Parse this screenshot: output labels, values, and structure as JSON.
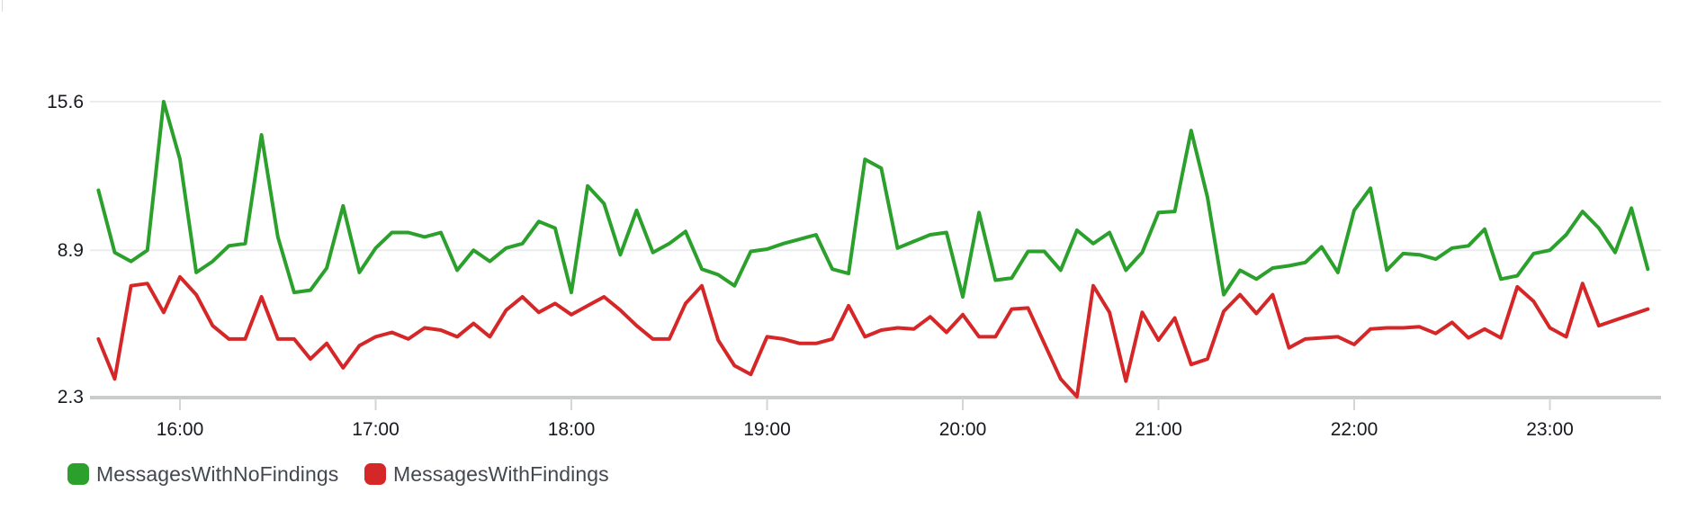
{
  "chart_data": {
    "type": "line",
    "title": "",
    "x_start": "15:35",
    "x_step_minutes": 5,
    "x_end": "23:30",
    "x_tick_labels": [
      "16:00",
      "17:00",
      "18:00",
      "19:00",
      "20:00",
      "21:00",
      "22:00",
      "23:00"
    ],
    "y_ticks": [
      {
        "label": "15.6",
        "value": 15.6
      },
      {
        "label": "8.9",
        "value": 8.9
      },
      {
        "label": "2.3",
        "value": 2.3
      }
    ],
    "ylim": [
      2.3,
      15.6
    ],
    "grid": "horizontal-only",
    "legend_position": "bottom-left",
    "colors": {
      "grid_line": "#eaecee",
      "axis_line": "#c8cccd",
      "tick_mark": "#d3d6d8",
      "tick_label": "#16191f"
    },
    "series": [
      {
        "name": "MessagesWithNoFindings",
        "color": "#2ca02c",
        "values": [
          11.6,
          8.8,
          8.4,
          8.9,
          15.6,
          13.0,
          7.9,
          8.4,
          9.1,
          9.2,
          14.1,
          9.5,
          7.0,
          7.1,
          8.1,
          10.9,
          7.9,
          9.0,
          9.7,
          9.7,
          9.5,
          9.7,
          8.0,
          8.9,
          8.4,
          9.0,
          9.2,
          10.2,
          9.9,
          7.0,
          11.8,
          11.0,
          8.7,
          10.7,
          8.8,
          9.2,
          9.75,
          8.05,
          7.8,
          7.3,
          8.85,
          8.95,
          9.2,
          9.4,
          9.6,
          8.05,
          7.85,
          13.0,
          12.6,
          9.0,
          9.3,
          9.6,
          9.7,
          6.8,
          10.6,
          7.55,
          7.65,
          8.85,
          8.85,
          8.0,
          9.8,
          9.2,
          9.7,
          8.0,
          8.8,
          10.6,
          10.65,
          14.3,
          11.3,
          6.9,
          8.0,
          7.6,
          8.1,
          8.2,
          8.35,
          9.05,
          7.9,
          10.7,
          11.7,
          8.0,
          8.75,
          8.7,
          8.5,
          9.0,
          9.1,
          9.85,
          7.6,
          7.75,
          8.75,
          8.9,
          9.6,
          10.65,
          9.9,
          8.8,
          10.8,
          8.05
        ]
      },
      {
        "name": "MessagesWithFindings",
        "color": "#d62728",
        "values": [
          4.9,
          3.1,
          7.3,
          7.4,
          6.1,
          7.7,
          6.9,
          5.5,
          4.9,
          4.9,
          6.8,
          4.9,
          4.9,
          4.0,
          4.7,
          3.6,
          4.6,
          5.0,
          5.2,
          4.9,
          5.4,
          5.3,
          5.0,
          5.6,
          5.0,
          6.2,
          6.8,
          6.1,
          6.5,
          6.0,
          6.4,
          6.8,
          6.2,
          5.5,
          4.9,
          4.9,
          6.5,
          7.3,
          4.85,
          3.7,
          3.3,
          5.0,
          4.9,
          4.7,
          4.7,
          4.9,
          6.4,
          5.0,
          5.3,
          5.4,
          5.35,
          5.9,
          5.2,
          6.0,
          5.0,
          5.0,
          6.25,
          6.3,
          4.7,
          3.1,
          2.3,
          7.3,
          6.1,
          3.0,
          6.1,
          4.85,
          5.85,
          3.75,
          4.0,
          6.15,
          6.9,
          6.05,
          6.9,
          4.5,
          4.9,
          4.95,
          5.0,
          4.65,
          5.35,
          5.4,
          5.4,
          5.45,
          5.15,
          5.65,
          4.95,
          5.35,
          4.95,
          7.25,
          6.6,
          5.4,
          5.0,
          7.4,
          5.5,
          5.75,
          6.0,
          6.25
        ]
      }
    ]
  },
  "legend": {
    "items": [
      {
        "label": "MessagesWithNoFindings",
        "color": "#2ca02c"
      },
      {
        "label": "MessagesWithFindings",
        "color": "#d62728"
      }
    ]
  }
}
